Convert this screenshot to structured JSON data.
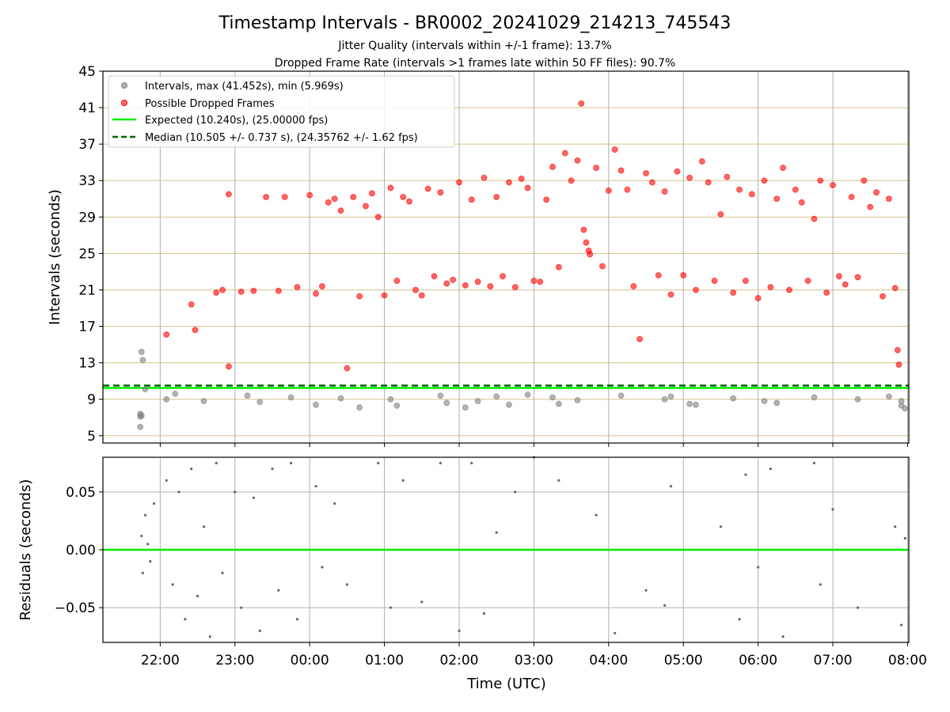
{
  "chart_data": [
    {
      "type": "scatter",
      "title": "Timestamp Intervals - BR0002_20241029_214213_745543",
      "subtitles": [
        "Jitter Quality (intervals within +/-1 frame): 13.7%",
        "Dropped Frame Rate (intervals >1 frames late within 50 FF files): 90.7%"
      ],
      "ylabel": "Intervals (seconds)",
      "ylim": [
        4.2,
        45
      ],
      "yticks": [
        "5",
        "9",
        "13",
        "17",
        "21",
        "25",
        "29",
        "33",
        "37",
        "41",
        "45"
      ],
      "xlim": [
        "21:14",
        "08:01"
      ],
      "xticks": [
        "22:00",
        "23:00",
        "00:00",
        "01:00",
        "02:00",
        "03:00",
        "04:00",
        "05:00",
        "06:00",
        "07:00",
        "08:00"
      ],
      "grid": true,
      "legend_position": "top-left",
      "series": [
        {
          "name": "Intervals, max (41.452s), min (5.969s)",
          "color": "#808080",
          "points": [
            [
              "21:45",
              14.2
            ],
            [
              "21:46",
              13.3
            ],
            [
              "21:44",
              7.4
            ],
            [
              "21:45",
              7.2
            ],
            [
              "21:44",
              7.1
            ],
            [
              "21:44",
              5.97
            ],
            [
              "21:48",
              10.1
            ],
            [
              "22:05",
              9.0
            ],
            [
              "22:12",
              9.6
            ],
            [
              "22:35",
              8.8
            ],
            [
              "23:10",
              9.4
            ],
            [
              "23:20",
              8.7
            ],
            [
              "23:45",
              9.2
            ],
            [
              "00:05",
              8.4
            ],
            [
              "00:25",
              9.1
            ],
            [
              "00:40",
              8.1
            ],
            [
              "01:05",
              9.0
            ],
            [
              "01:10",
              8.3
            ],
            [
              "01:45",
              9.4
            ],
            [
              "01:50",
              8.6
            ],
            [
              "02:05",
              8.1
            ],
            [
              "02:15",
              8.8
            ],
            [
              "02:30",
              9.3
            ],
            [
              "02:40",
              8.4
            ],
            [
              "02:55",
              9.5
            ],
            [
              "03:15",
              9.2
            ],
            [
              "03:20",
              8.5
            ],
            [
              "03:35",
              8.9
            ],
            [
              "04:10",
              9.4
            ],
            [
              "04:45",
              9.0
            ],
            [
              "04:50",
              9.3
            ],
            [
              "05:05",
              8.5
            ],
            [
              "05:10",
              8.4
            ],
            [
              "05:40",
              9.1
            ],
            [
              "06:05",
              8.8
            ],
            [
              "06:15",
              8.6
            ],
            [
              "06:45",
              9.2
            ],
            [
              "07:20",
              9.0
            ],
            [
              "07:45",
              9.3
            ],
            [
              "07:55",
              8.3
            ],
            [
              "07:55",
              8.8
            ],
            [
              "07:58",
              8.0
            ]
          ]
        },
        {
          "name": "Possible Dropped Frames",
          "color": "#ff0000",
          "points": [
            [
              "22:05",
              16.1
            ],
            [
              "22:25",
              19.4
            ],
            [
              "22:28",
              16.6
            ],
            [
              "22:45",
              20.7
            ],
            [
              "22:50",
              21.0
            ],
            [
              "22:55",
              12.6
            ],
            [
              "22:55",
              31.5
            ],
            [
              "23:05",
              20.8
            ],
            [
              "23:15",
              20.9
            ],
            [
              "23:25",
              31.2
            ],
            [
              "23:35",
              20.9
            ],
            [
              "23:40",
              31.2
            ],
            [
              "23:50",
              21.3
            ],
            [
              "00:00",
              31.4
            ],
            [
              "00:05",
              20.6
            ],
            [
              "00:10",
              21.4
            ],
            [
              "00:15",
              30.6
            ],
            [
              "00:20",
              31.0
            ],
            [
              "00:25",
              29.7
            ],
            [
              "00:30",
              12.4
            ],
            [
              "00:35",
              31.2
            ],
            [
              "00:40",
              20.3
            ],
            [
              "00:45",
              30.2
            ],
            [
              "00:50",
              31.6
            ],
            [
              "00:55",
              29.0
            ],
            [
              "01:00",
              20.4
            ],
            [
              "01:05",
              32.2
            ],
            [
              "01:10",
              22.0
            ],
            [
              "01:15",
              31.2
            ],
            [
              "01:20",
              30.7
            ],
            [
              "01:25",
              21.0
            ],
            [
              "01:30",
              20.4
            ],
            [
              "01:35",
              32.1
            ],
            [
              "01:40",
              22.5
            ],
            [
              "01:45",
              31.7
            ],
            [
              "01:50",
              21.7
            ],
            [
              "01:55",
              22.1
            ],
            [
              "02:00",
              32.8
            ],
            [
              "02:05",
              21.5
            ],
            [
              "02:10",
              30.9
            ],
            [
              "02:15",
              21.9
            ],
            [
              "02:20",
              33.3
            ],
            [
              "02:25",
              21.4
            ],
            [
              "02:30",
              31.2
            ],
            [
              "02:35",
              22.5
            ],
            [
              "02:40",
              32.8
            ],
            [
              "02:45",
              21.3
            ],
            [
              "02:50",
              33.2
            ],
            [
              "02:55",
              32.2
            ],
            [
              "03:00",
              22.0
            ],
            [
              "03:05",
              21.9
            ],
            [
              "03:10",
              30.9
            ],
            [
              "03:15",
              34.5
            ],
            [
              "03:20",
              23.5
            ],
            [
              "03:25",
              36.0
            ],
            [
              "03:30",
              33.0
            ],
            [
              "03:35",
              35.2
            ],
            [
              "03:38",
              41.45
            ],
            [
              "03:40",
              27.6
            ],
            [
              "03:42",
              26.2
            ],
            [
              "03:44",
              25.3
            ],
            [
              "03:45",
              24.9
            ],
            [
              "03:50",
              34.4
            ],
            [
              "03:55",
              23.6
            ],
            [
              "04:00",
              31.9
            ],
            [
              "04:05",
              36.4
            ],
            [
              "04:10",
              34.1
            ],
            [
              "04:15",
              32.0
            ],
            [
              "04:20",
              21.4
            ],
            [
              "04:25",
              15.6
            ],
            [
              "04:30",
              33.8
            ],
            [
              "04:35",
              32.8
            ],
            [
              "04:40",
              22.6
            ],
            [
              "04:45",
              31.8
            ],
            [
              "04:50",
              20.5
            ],
            [
              "04:55",
              34.0
            ],
            [
              "05:00",
              22.6
            ],
            [
              "05:05",
              33.3
            ],
            [
              "05:10",
              21.0
            ],
            [
              "05:15",
              35.1
            ],
            [
              "05:20",
              32.8
            ],
            [
              "05:25",
              22.0
            ],
            [
              "05:30",
              29.3
            ],
            [
              "05:35",
              33.4
            ],
            [
              "05:40",
              20.7
            ],
            [
              "05:45",
              32.0
            ],
            [
              "05:50",
              22.0
            ],
            [
              "05:55",
              31.5
            ],
            [
              "06:00",
              20.1
            ],
            [
              "06:05",
              33.0
            ],
            [
              "06:10",
              21.3
            ],
            [
              "06:15",
              31.0
            ],
            [
              "06:20",
              34.4
            ],
            [
              "06:25",
              21.0
            ],
            [
              "06:30",
              32.0
            ],
            [
              "06:35",
              30.6
            ],
            [
              "06:40",
              22.0
            ],
            [
              "06:45",
              28.8
            ],
            [
              "06:50",
              33.0
            ],
            [
              "06:55",
              20.7
            ],
            [
              "07:00",
              32.5
            ],
            [
              "07:05",
              22.5
            ],
            [
              "07:10",
              21.6
            ],
            [
              "07:15",
              31.2
            ],
            [
              "07:20",
              22.4
            ],
            [
              "07:25",
              33.0
            ],
            [
              "07:30",
              30.1
            ],
            [
              "07:35",
              31.7
            ],
            [
              "07:40",
              20.3
            ],
            [
              "07:45",
              31.0
            ],
            [
              "07:50",
              21.2
            ],
            [
              "07:52",
              14.4
            ],
            [
              "07:53",
              12.8
            ]
          ]
        }
      ],
      "lines": [
        {
          "name": "Expected (10.240s), (25.00000 fps)",
          "value": 10.24,
          "color": "#00ee00",
          "style": "solid"
        },
        {
          "name": "Median (10.505 +/- 0.737 s), (24.35762 +/- 1.62 fps)",
          "value": 10.505,
          "color": "#006400",
          "style": "dashed"
        }
      ]
    },
    {
      "type": "scatter",
      "ylabel": "Residuals (seconds)",
      "xlabel": "Time (UTC)",
      "ylim": [
        -0.08,
        0.08
      ],
      "yticks": [
        "−0.05",
        "0.00",
        "0.05"
      ],
      "xticks": [
        "22:00",
        "23:00",
        "00:00",
        "01:00",
        "02:00",
        "03:00",
        "04:00",
        "05:00",
        "06:00",
        "07:00",
        "08:00"
      ],
      "grid": true,
      "series": [
        {
          "color": "#666666",
          "points": [
            [
              "21:45",
              0.012
            ],
            [
              "21:46",
              -0.02
            ],
            [
              "21:48",
              0.03
            ],
            [
              "21:50",
              0.005
            ],
            [
              "21:52",
              -0.01
            ],
            [
              "21:55",
              0.04
            ],
            [
              "22:05",
              0.06
            ],
            [
              "22:10",
              -0.03
            ],
            [
              "22:15",
              0.05
            ],
            [
              "22:20",
              -0.06
            ],
            [
              "22:25",
              0.07
            ],
            [
              "22:30",
              -0.04
            ],
            [
              "22:35",
              0.02
            ],
            [
              "22:40",
              -0.075
            ],
            [
              "22:45",
              0.075
            ],
            [
              "22:50",
              -0.02
            ],
            [
              "23:00",
              0.05
            ],
            [
              "23:05",
              -0.05
            ],
            [
              "23:15",
              0.045
            ],
            [
              "23:20",
              -0.07
            ],
            [
              "23:30",
              0.07
            ],
            [
              "23:35",
              -0.035
            ],
            [
              "23:45",
              0.075
            ],
            [
              "23:50",
              -0.06
            ],
            [
              "00:05",
              0.055
            ],
            [
              "00:10",
              -0.015
            ],
            [
              "00:20",
              0.04
            ],
            [
              "00:30",
              -0.03
            ],
            [
              "00:55",
              0.075
            ],
            [
              "01:05",
              -0.05
            ],
            [
              "01:15",
              0.06
            ],
            [
              "01:30",
              -0.045
            ],
            [
              "01:45",
              0.075
            ],
            [
              "02:00",
              -0.07
            ],
            [
              "02:10",
              0.075
            ],
            [
              "02:20",
              -0.055
            ],
            [
              "02:30",
              0.015
            ],
            [
              "02:45",
              0.05
            ],
            [
              "03:00",
              0.08
            ],
            [
              "03:20",
              0.06
            ],
            [
              "03:50",
              0.03
            ],
            [
              "04:05",
              -0.072
            ],
            [
              "04:30",
              -0.035
            ],
            [
              "04:45",
              -0.048
            ],
            [
              "04:50",
              0.055
            ],
            [
              "05:30",
              0.02
            ],
            [
              "05:45",
              -0.06
            ],
            [
              "05:50",
              0.065
            ],
            [
              "06:00",
              -0.015
            ],
            [
              "06:10",
              0.07
            ],
            [
              "06:20",
              -0.075
            ],
            [
              "06:45",
              0.075
            ],
            [
              "06:50",
              -0.03
            ],
            [
              "07:00",
              0.035
            ],
            [
              "07:20",
              -0.05
            ],
            [
              "07:50",
              0.02
            ],
            [
              "07:55",
              -0.065
            ],
            [
              "07:58",
              0.01
            ]
          ]
        }
      ],
      "lines": [
        {
          "value": 0.0,
          "color": "#00ee00",
          "style": "solid"
        }
      ]
    }
  ]
}
